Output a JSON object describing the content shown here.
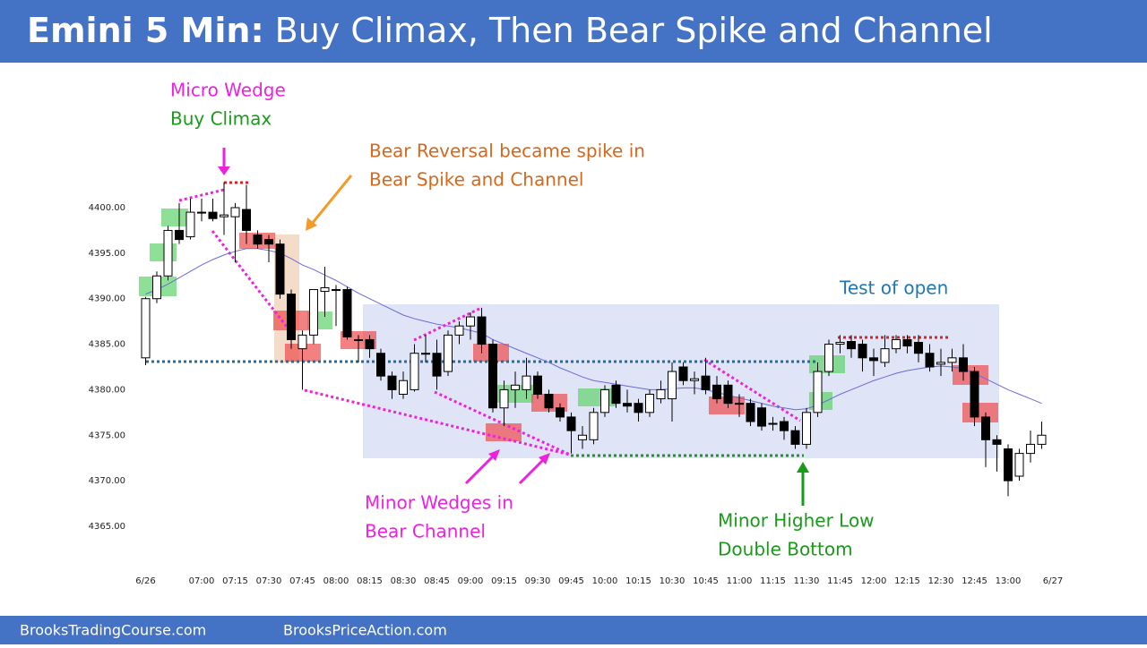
{
  "header": {
    "title_bold": "Emini 5 Min:",
    "title_rest": "Buy Climax, Then Bear Spike and Channel"
  },
  "footer": {
    "left": "BrooksTradingCourse.com",
    "right": "BrooksPriceAction.com"
  },
  "annotations": [
    "Micro Wedge",
    "Buy Climax",
    "Bear Reversal became spike in",
    "Bear Spike and Channel",
    "Test of open",
    "Minor Wedges in",
    "Bear Channel",
    "Minor Higher Low",
    "Double Bottom"
  ],
  "chart_data": {
    "type": "candlestick",
    "ylim": [
      4360,
      4413
    ],
    "yticks": [
      {
        "value": 4400,
        "label": "4400.00"
      },
      {
        "value": 4395,
        "label": "4395.00"
      },
      {
        "value": 4390,
        "label": "4390.00"
      },
      {
        "value": 4385,
        "label": "4385.00"
      },
      {
        "value": 4380,
        "label": "4380.00"
      },
      {
        "value": 4375,
        "label": "4375.00"
      },
      {
        "value": 4370,
        "label": "4370.00"
      },
      {
        "value": 4365,
        "label": "4365.00"
      }
    ],
    "xlim": [
      -2,
      83
    ],
    "xticks": [
      {
        "value": 0,
        "label": "6/26"
      },
      {
        "value": 5,
        "label": "07:00"
      },
      {
        "value": 8,
        "label": "07:15"
      },
      {
        "value": 11,
        "label": "07:30"
      },
      {
        "value": 14,
        "label": "07:45"
      },
      {
        "value": 17,
        "label": "08:00"
      },
      {
        "value": 20,
        "label": "08:15"
      },
      {
        "value": 23,
        "label": "08:30"
      },
      {
        "value": 26,
        "label": "08:45"
      },
      {
        "value": 29,
        "label": "09:00"
      },
      {
        "value": 32,
        "label": "09:15"
      },
      {
        "value": 35,
        "label": "09:30"
      },
      {
        "value": 38,
        "label": "09:45"
      },
      {
        "value": 41,
        "label": "10:00"
      },
      {
        "value": 44,
        "label": "10:15"
      },
      {
        "value": 47,
        "label": "10:30"
      },
      {
        "value": 50,
        "label": "10:45"
      },
      {
        "value": 53,
        "label": "11:00"
      },
      {
        "value": 56,
        "label": "11:15"
      },
      {
        "value": 59,
        "label": "11:30"
      },
      {
        "value": 62,
        "label": "11:45"
      },
      {
        "value": 65,
        "label": "12:00"
      },
      {
        "value": 68,
        "label": "12:15"
      },
      {
        "value": 71,
        "label": "12:30"
      },
      {
        "value": 74,
        "label": "12:45"
      },
      {
        "value": 77,
        "label": "13:00"
      },
      {
        "value": 81,
        "label": "6/27"
      }
    ],
    "bull_color": "#ffffff",
    "bear_color": "#000000",
    "open": [
      4383.5,
      4390,
      4392.5,
      4397.5,
      4396.8,
      4399.5,
      4399.5,
      4399,
      4399,
      4399.8,
      4397,
      4396.5,
      4396,
      4390.5,
      4384.5,
      4386,
      4390.8,
      4391,
      4391,
      4385.5,
      4385.5,
      4384,
      4381.5,
      4379.5,
      4380,
      4384,
      4384,
      4382,
      4386,
      4387,
      4388,
      4385,
      4378,
      4380,
      4380,
      4381.5,
      4379.5,
      4378,
      4377,
      4374.5,
      4374.5,
      4377.5,
      4380.5,
      4378.5,
      4378.5,
      4377.5,
      4379,
      4379,
      4382.5,
      4381,
      4381.5,
      4380.5,
      4380.5,
      4378.5,
      4378.5,
      4378,
      4376.3,
      4376.5,
      4375.5,
      4374,
      4377.5,
      4382,
      4385,
      4385.3,
      4385,
      4383.5,
      4383,
      4384.5,
      4385.5,
      4385.2,
      4384,
      4382.8,
      4383,
      4383.5,
      4382,
      4377,
      4374.5,
      4373.5,
      4370.5,
      4373,
      4374
    ],
    "high": [
      4390.2,
      4393,
      4398,
      4400.5,
      4401,
      4401,
      4401,
      4402.8,
      4400.5,
      4402.5,
      4397.5,
      4397,
      4396.5,
      4391,
      4386.5,
      4391,
      4393.5,
      4391.5,
      4391.3,
      4386,
      4386,
      4384.5,
      4382,
      4382,
      4385,
      4386,
      4385.5,
      4386.5,
      4387.5,
      4388.5,
      4389,
      4385.5,
      4381,
      4382,
      4383.5,
      4382,
      4380,
      4378.5,
      4377.5,
      4376,
      4378,
      4380.5,
      4381,
      4380,
      4379,
      4380,
      4381,
      4383,
      4383,
      4382,
      4383.5,
      4381.5,
      4381,
      4379.5,
      4379,
      4378.5,
      4377,
      4377,
      4376,
      4378,
      4383,
      4385.5,
      4386,
      4386,
      4385.5,
      4384.5,
      4386,
      4386,
      4386,
      4386,
      4385,
      4384.5,
      4384.5,
      4385,
      4382.5,
      4377.5,
      4375,
      4374,
      4373.5,
      4375.5,
      4376.5
    ],
    "low": [
      4382.7,
      4389.5,
      4392,
      4396,
      4396.5,
      4398.5,
      4398.5,
      4397,
      4394,
      4396,
      4395.5,
      4394,
      4390,
      4384.5,
      4380,
      4385,
      4388,
      4387,
      4385.5,
      4383,
      4383.5,
      4381,
      4379,
      4379,
      4379.8,
      4383,
      4380,
      4381.5,
      4385,
      4385.5,
      4384,
      4377.5,
      4376,
      4378,
      4379,
      4379,
      4377.5,
      4376.5,
      4373,
      4373.5,
      4374,
      4377,
      4378,
      4377.5,
      4376.5,
      4377,
      4378.5,
      4376.5,
      4380.5,
      4379.5,
      4379.5,
      4378.5,
      4378,
      4377,
      4376,
      4375.5,
      4375.5,
      4374.5,
      4373.5,
      4373.5,
      4377,
      4381.5,
      4384,
      4383.5,
      4382,
      4381.5,
      4382.5,
      4384,
      4384,
      4383,
      4382,
      4381.5,
      4382,
      4381,
      4376,
      4371.5,
      4371,
      4368.3,
      4370,
      4372,
      4373.5
    ],
    "close": [
      4390,
      4392.5,
      4397.5,
      4396.5,
      4399.5,
      4399.5,
      4398.8,
      4399.2,
      4400,
      4397.5,
      4396,
      4396,
      4390.5,
      4385.5,
      4386,
      4391,
      4391.2,
      4391,
      4385.8,
      4385.5,
      4384.5,
      4381.5,
      4380,
      4381,
      4384,
      4384,
      4381.5,
      4386,
      4387,
      4388,
      4385,
      4378,
      4380,
      4380.5,
      4381.5,
      4379.5,
      4378,
      4377,
      4375.5,
      4375,
      4377.5,
      4380,
      4378.5,
      4378.2,
      4377.5,
      4379.5,
      4380,
      4382,
      4381,
      4381.2,
      4380,
      4379,
      4378.5,
      4378.5,
      4376.5,
      4376,
      4376.3,
      4375.5,
      4374,
      4377.5,
      4382,
      4385,
      4385.2,
      4384.5,
      4383.5,
      4383.2,
      4384.5,
      4385.5,
      4384.8,
      4384,
      4382.5,
      4383,
      4383.5,
      4382,
      4377,
      4374.5,
      4374,
      4370,
      4373,
      4374,
      4375
    ],
    "ema": {
      "color": "#6a6ad8",
      "values": [
        4390.5,
        4391,
        4391.6,
        4392.3,
        4393,
        4393.7,
        4394.3,
        4394.8,
        4395.2,
        4395.5,
        4395.5,
        4395.3,
        4395,
        4394.4,
        4393.7,
        4393.2,
        4392.6,
        4392,
        4391.3,
        4390.6,
        4390,
        4389.4,
        4388.8,
        4388.2,
        4387.8,
        4387.5,
        4387.2,
        4387,
        4386.8,
        4386.5,
        4386.2,
        4385.5,
        4385,
        4384.5,
        4384,
        4383.5,
        4383,
        4382.4,
        4381.9,
        4381.4,
        4381,
        4380.8,
        4380.6,
        4380.4,
        4380.2,
        4380,
        4380,
        4380.1,
        4380.2,
        4380.2,
        4380,
        4379.7,
        4379.4,
        4379.1,
        4378.8,
        4378.5,
        4378.2,
        4378,
        4377.8,
        4377.9,
        4378.3,
        4378.9,
        4379.5,
        4380,
        4380.5,
        4381,
        4381.4,
        4381.8,
        4382.1,
        4382.3,
        4382.5,
        4382.6,
        4382.5,
        4382.3,
        4381.8,
        4381.2,
        4380.6,
        4380,
        4379.5,
        4379,
        4378.5
      ]
    }
  }
}
